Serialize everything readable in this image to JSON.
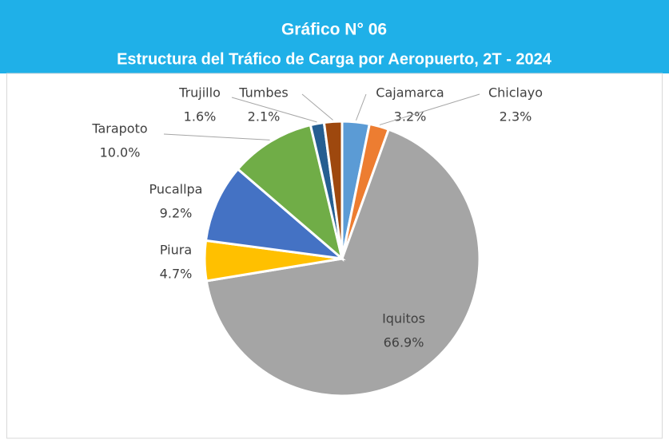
{
  "chart_data": {
    "type": "pie",
    "title": "Gráfico N° 06",
    "subtitle": "Estructura del Tráfico de Carga por Aeropuerto, 2T - 2024",
    "categories": [
      "Cajamarca",
      "Chiclayo",
      "Iquitos",
      "Piura",
      "Pucallpa",
      "Tarapoto",
      "Trujillo",
      "Tumbes"
    ],
    "values": [
      3.2,
      2.3,
      66.9,
      4.7,
      9.2,
      10.0,
      1.6,
      2.1
    ],
    "value_labels": [
      "3.2%",
      "2.3%",
      "66.9%",
      "4.7%",
      "9.2%",
      "10.0%",
      "1.6%",
      "2.1%"
    ],
    "colors": [
      "#5b9bd5",
      "#ed7d31",
      "#a5a5a5",
      "#ffc000",
      "#4472c4",
      "#70ad47",
      "#255e91",
      "#9e480e"
    ]
  }
}
